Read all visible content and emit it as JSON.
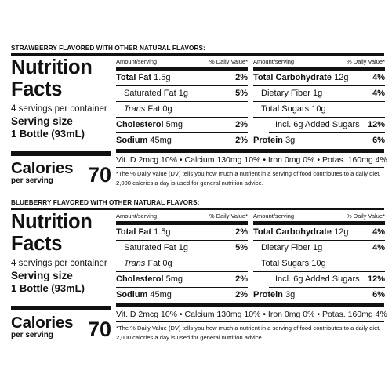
{
  "panels": [
    {
      "flavor": "STRAWBERRY FLAVORED WITH OTHER NATURAL FLAVORS:",
      "title_line1": "Nutrition",
      "title_line2": "Facts",
      "servings": "4 servings per container",
      "serving_size_label": "Serving size",
      "serving_size_value": "1 Bottle (93mL)",
      "calories_label": "Calories",
      "calories_sub": "per serving",
      "calories_value": "70",
      "col_header_left": "Amount/serving",
      "col_header_right": "% Daily Value*",
      "left_rows": [
        {
          "name": "Total Fat",
          "amount": "1.5g",
          "dv": "2%"
        },
        {
          "name": "Saturated Fat",
          "amount": "1g",
          "dv": "5%"
        },
        {
          "name": "Trans",
          "amount": "Fat 0g",
          "dv": ""
        },
        {
          "name": "Cholesterol",
          "amount": "5mg",
          "dv": "2%"
        },
        {
          "name": "Sodium",
          "amount": "45mg",
          "dv": "2%"
        }
      ],
      "right_rows": [
        {
          "name": "Total Carbohydrate",
          "amount": "12g",
          "dv": "4%"
        },
        {
          "name": "Dietary Fiber",
          "amount": "1g",
          "dv": "4%"
        },
        {
          "name": "Total Sugars",
          "amount": "10g",
          "dv": ""
        },
        {
          "name": "Incl. 6g Added Sugars",
          "amount": "",
          "dv": "12%"
        },
        {
          "name": "Protein",
          "amount": "3g",
          "dv": "6%"
        }
      ],
      "vitamins": "Vit. D 2mcg 10% • Calcium 130mg 10% • Iron 0mg 0% • Potas. 160mg 4%",
      "footnote_line1": "*The % Daily Value (DV) tells you how much a nutrient in a serving of food contributes to a daily diet.",
      "footnote_line2": "2,000 calories a day is used for general nutrition advice."
    },
    {
      "flavor": "BLUEBERRY FLAVORED WITH OTHER NATURAL FLAVORS:",
      "title_line1": "Nutrition",
      "title_line2": "Facts",
      "servings": "4 servings per container",
      "serving_size_label": "Serving size",
      "serving_size_value": "1 Bottle (93mL)",
      "calories_label": "Calories",
      "calories_sub": "per serving",
      "calories_value": "70",
      "col_header_left": "Amount/serving",
      "col_header_right": "% Daily Value*",
      "left_rows": [
        {
          "name": "Total Fat",
          "amount": "1.5g",
          "dv": "2%"
        },
        {
          "name": "Saturated Fat",
          "amount": "1g",
          "dv": "5%"
        },
        {
          "name": "Trans",
          "amount": "Fat 0g",
          "dv": ""
        },
        {
          "name": "Cholesterol",
          "amount": "5mg",
          "dv": "2%"
        },
        {
          "name": "Sodium",
          "amount": "45mg",
          "dv": "2%"
        }
      ],
      "right_rows": [
        {
          "name": "Total Carbohydrate",
          "amount": "12g",
          "dv": "4%"
        },
        {
          "name": "Dietary Fiber",
          "amount": "1g",
          "dv": "4%"
        },
        {
          "name": "Total Sugars",
          "amount": "10g",
          "dv": ""
        },
        {
          "name": "Incl. 6g Added Sugars",
          "amount": "",
          "dv": "12%"
        },
        {
          "name": "Protein",
          "amount": "3g",
          "dv": "6%"
        }
      ],
      "vitamins": "Vit. D 2mcg 10% • Calcium 130mg 10% • Iron 0mg 0% • Potas. 160mg 4%",
      "footnote_line1": "*The % Daily Value (DV) tells you how much a nutrient in a serving of food contributes to a daily diet.",
      "footnote_line2": "2,000 calories a day is used for general nutrition advice."
    }
  ]
}
